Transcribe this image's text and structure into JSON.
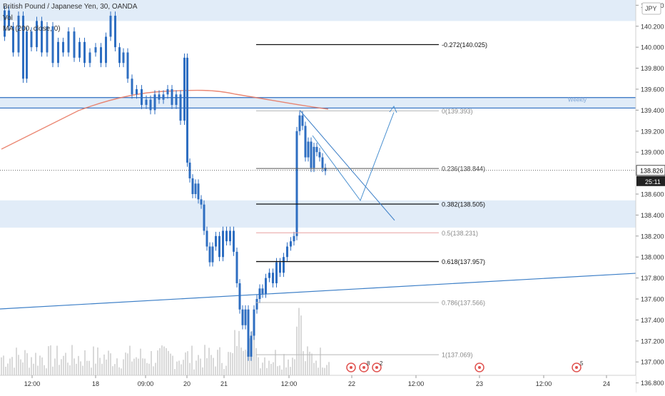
{
  "header": {
    "symbol_title": "British Pound / Japanese Yen, 30, OANDA",
    "volume_label": "Vol",
    "ma_label": "MA (200, close, 0)"
  },
  "currency_badge": "JPY",
  "price_readout": {
    "last_price": "138.826",
    "countdown": "25:11"
  },
  "colors": {
    "candle": "#2e6ec1",
    "zone_fill": "#c9dcf2",
    "zone_line": "#2e6ec1",
    "ma_line": "#e8735c",
    "trendline": "#3d7fc7",
    "arrow": "#4a90d0",
    "volume": "#d9d9d9",
    "event_marker": "#e0524f"
  },
  "chart_data": {
    "type": "candlestick",
    "y_axis": {
      "range": [
        136.75,
        140.45
      ],
      "ticks": [
        "140.400",
        "140.200",
        "140.000",
        "139.800",
        "139.600",
        "139.400",
        "139.200",
        "139.000",
        "138.800",
        "138.600",
        "138.400",
        "138.200",
        "138.000",
        "137.800",
        "137.600",
        "137.400",
        "137.200",
        "137.000",
        "136.800"
      ]
    },
    "x_axis": {
      "ticks": [
        "12:00",
        "18",
        "09:00",
        "20",
        "21",
        "12:00",
        "22",
        "12:00",
        "23",
        "12:00",
        "24"
      ]
    },
    "fibonacci_levels": [
      {
        "label": "-0.272(140.025)",
        "price": 140.025,
        "style": "dark"
      },
      {
        "label": "0(139.393)",
        "price": 139.393,
        "style": "light"
      },
      {
        "label": "0.236(138.844)",
        "price": 138.844,
        "style": "medium"
      },
      {
        "label": "0.382(138.505)",
        "price": 138.505,
        "style": "dark"
      },
      {
        "label": "0.5(138.231)",
        "price": 138.231,
        "style": "light"
      },
      {
        "label": "0.618(137.957)",
        "price": 137.957,
        "style": "dark"
      },
      {
        "label": "0.786(137.566)",
        "price": 137.566,
        "style": "light"
      },
      {
        "label": "1(137.069)",
        "price": 137.069,
        "style": "light"
      }
    ],
    "zones": [
      {
        "name": "top-zone",
        "from": 140.25,
        "to": 140.45
      },
      {
        "name": "weekly-zone",
        "from": 139.42,
        "to": 139.52,
        "label": "Weekly"
      },
      {
        "name": "support-zone",
        "from": 138.28,
        "to": 138.54
      }
    ],
    "events": [
      {
        "position": "22",
        "count": "8"
      },
      {
        "position": "22",
        "count": "2"
      },
      {
        "position": "23",
        "count": ""
      },
      {
        "position": "24",
        "count": "5"
      }
    ]
  }
}
